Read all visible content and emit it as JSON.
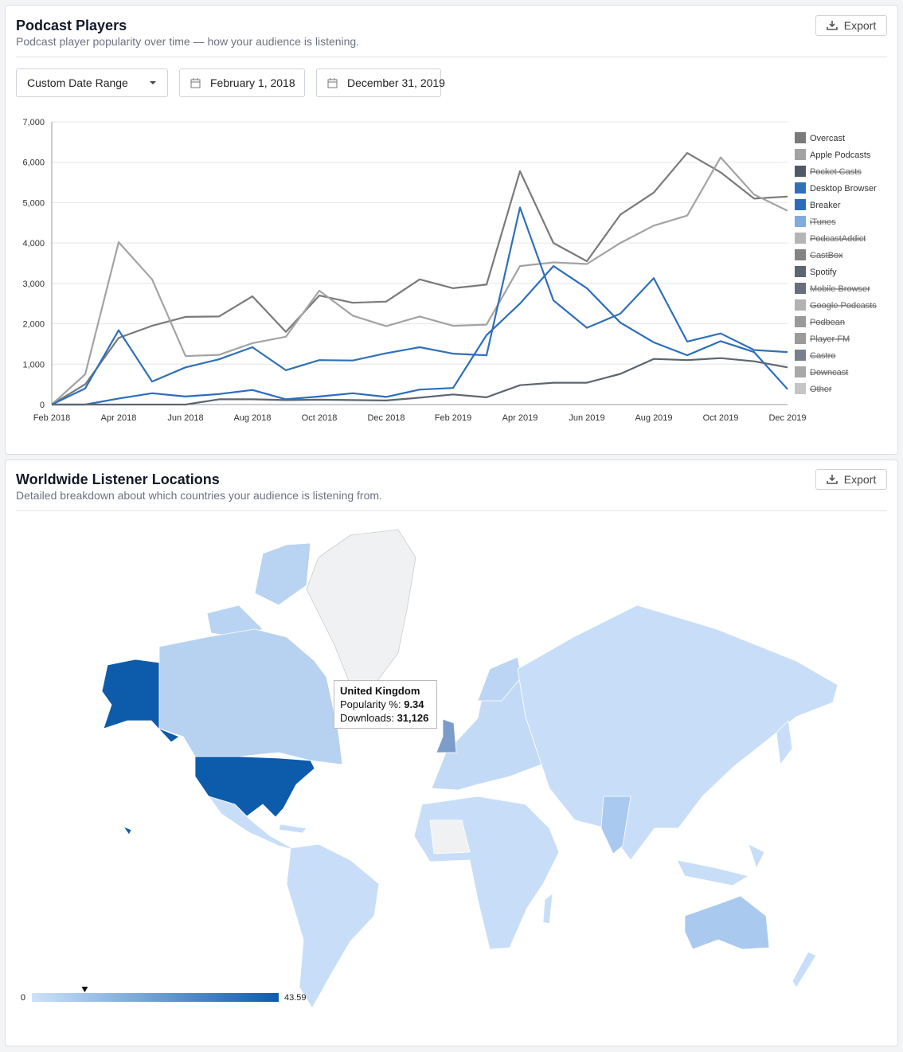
{
  "players_panel": {
    "title": "Podcast Players",
    "subtitle": "Podcast player popularity over time — how your audience is listening.",
    "export": "Export",
    "date_range": "Custom Date Range",
    "start_date": "February 1, 2018",
    "end_date": "December 31, 2019"
  },
  "chart_data": {
    "type": "line",
    "categories": [
      "Feb 2018",
      null,
      "Apr 2018",
      null,
      "Jun 2018",
      null,
      "Aug 2018",
      null,
      "Oct 2018",
      null,
      "Dec 2018",
      null,
      "Feb 2019",
      null,
      "Apr 2019",
      null,
      "Jun 2019",
      null,
      "Aug 2019",
      null,
      "Oct 2019",
      null,
      "Dec 2019"
    ],
    "ylim": [
      0,
      7000
    ],
    "yticks": [
      0,
      {
        "value": 1000,
        "label": "1,000"
      },
      {
        "value": 2000,
        "label": "2,000"
      },
      {
        "value": 3000,
        "label": "3,000"
      },
      {
        "value": 4000,
        "label": "4,000"
      },
      {
        "value": 5000,
        "label": "5,000"
      },
      {
        "value": 6000,
        "label": "6,000"
      },
      {
        "value": 7000,
        "label": "7,000"
      }
    ],
    "grid": true,
    "legend": "right",
    "series": [
      {
        "name": "Overcast",
        "color": "#7a7a7a",
        "values": [
          0,
          500,
          1650,
          1950,
          2170,
          2180,
          2680,
          1800,
          2700,
          2520,
          2550,
          3100,
          2880,
          2970,
          5780,
          4000,
          3550,
          4700,
          5250,
          6230,
          5750,
          5100,
          5150
        ]
      },
      {
        "name": "Apple Podcasts",
        "color": "#a3a3a3",
        "values": [
          0,
          750,
          4020,
          3100,
          1200,
          1230,
          1520,
          1680,
          2820,
          2200,
          1940,
          2180,
          1950,
          1980,
          3430,
          3520,
          3480,
          4000,
          4430,
          4680,
          6120,
          5200,
          4800
        ]
      },
      {
        "name": "Pocket Casts",
        "color": "#333d47",
        "hidden": true
      },
      {
        "name": "Desktop Browser",
        "color": "#3070b8",
        "values": [
          0,
          400,
          1840,
          570,
          920,
          1120,
          1420,
          850,
          1100,
          1090,
          1270,
          1420,
          1260,
          1220,
          4880,
          2580,
          1900,
          2250,
          3130,
          1560,
          1760,
          1350,
          1300
        ]
      },
      {
        "name": "Breaker",
        "color": "#2b6cbc",
        "values": [
          0,
          0,
          150,
          280,
          200,
          260,
          360,
          130,
          200,
          280,
          190,
          370,
          410,
          1720,
          2500,
          3430,
          2880,
          2030,
          1540,
          1220,
          1570,
          1300,
          380
        ]
      },
      {
        "name": "iTunes",
        "color": "#6a9ed6",
        "hidden": true
      },
      {
        "name": "PodcastAddict",
        "color": "#a8a8a8",
        "hidden": true
      },
      {
        "name": "CastBox",
        "color": "#6f6f6f",
        "hidden": true
      },
      {
        "name": "Spotify",
        "color": "#5c6670",
        "values": [
          0,
          0,
          0,
          0,
          0,
          130,
          130,
          110,
          120,
          110,
          100,
          170,
          250,
          180,
          480,
          540,
          540,
          760,
          1130,
          1100,
          1150,
          1070,
          920
        ]
      },
      {
        "name": "Mobile Browser",
        "color": "#4b5663",
        "hidden": true
      },
      {
        "name": "Google Podcasts",
        "color": "#a5a5a5",
        "hidden": true
      },
      {
        "name": "Podbean",
        "color": "#888888",
        "hidden": true
      },
      {
        "name": "Player FM",
        "color": "#8a8a8a",
        "hidden": true
      },
      {
        "name": "Castro",
        "color": "#5f6a75",
        "hidden": true
      },
      {
        "name": "Downcast",
        "color": "#999999",
        "hidden": true
      },
      {
        "name": "Other",
        "color": "#bbbbbb",
        "hidden": true
      }
    ]
  },
  "map_panel": {
    "title": "Worldwide Listener Locations",
    "subtitle": "Detailed breakdown about which countries your audience is listening from.",
    "export": "Export",
    "scale_min": 0,
    "scale_max": 43.59,
    "tooltip": {
      "country": "United Kingdom",
      "popularity_label": "Popularity %:",
      "popularity": 9.34,
      "downloads_label": "Downloads:",
      "downloads": {
        "value": 31126,
        "label": "31,126"
      }
    }
  }
}
